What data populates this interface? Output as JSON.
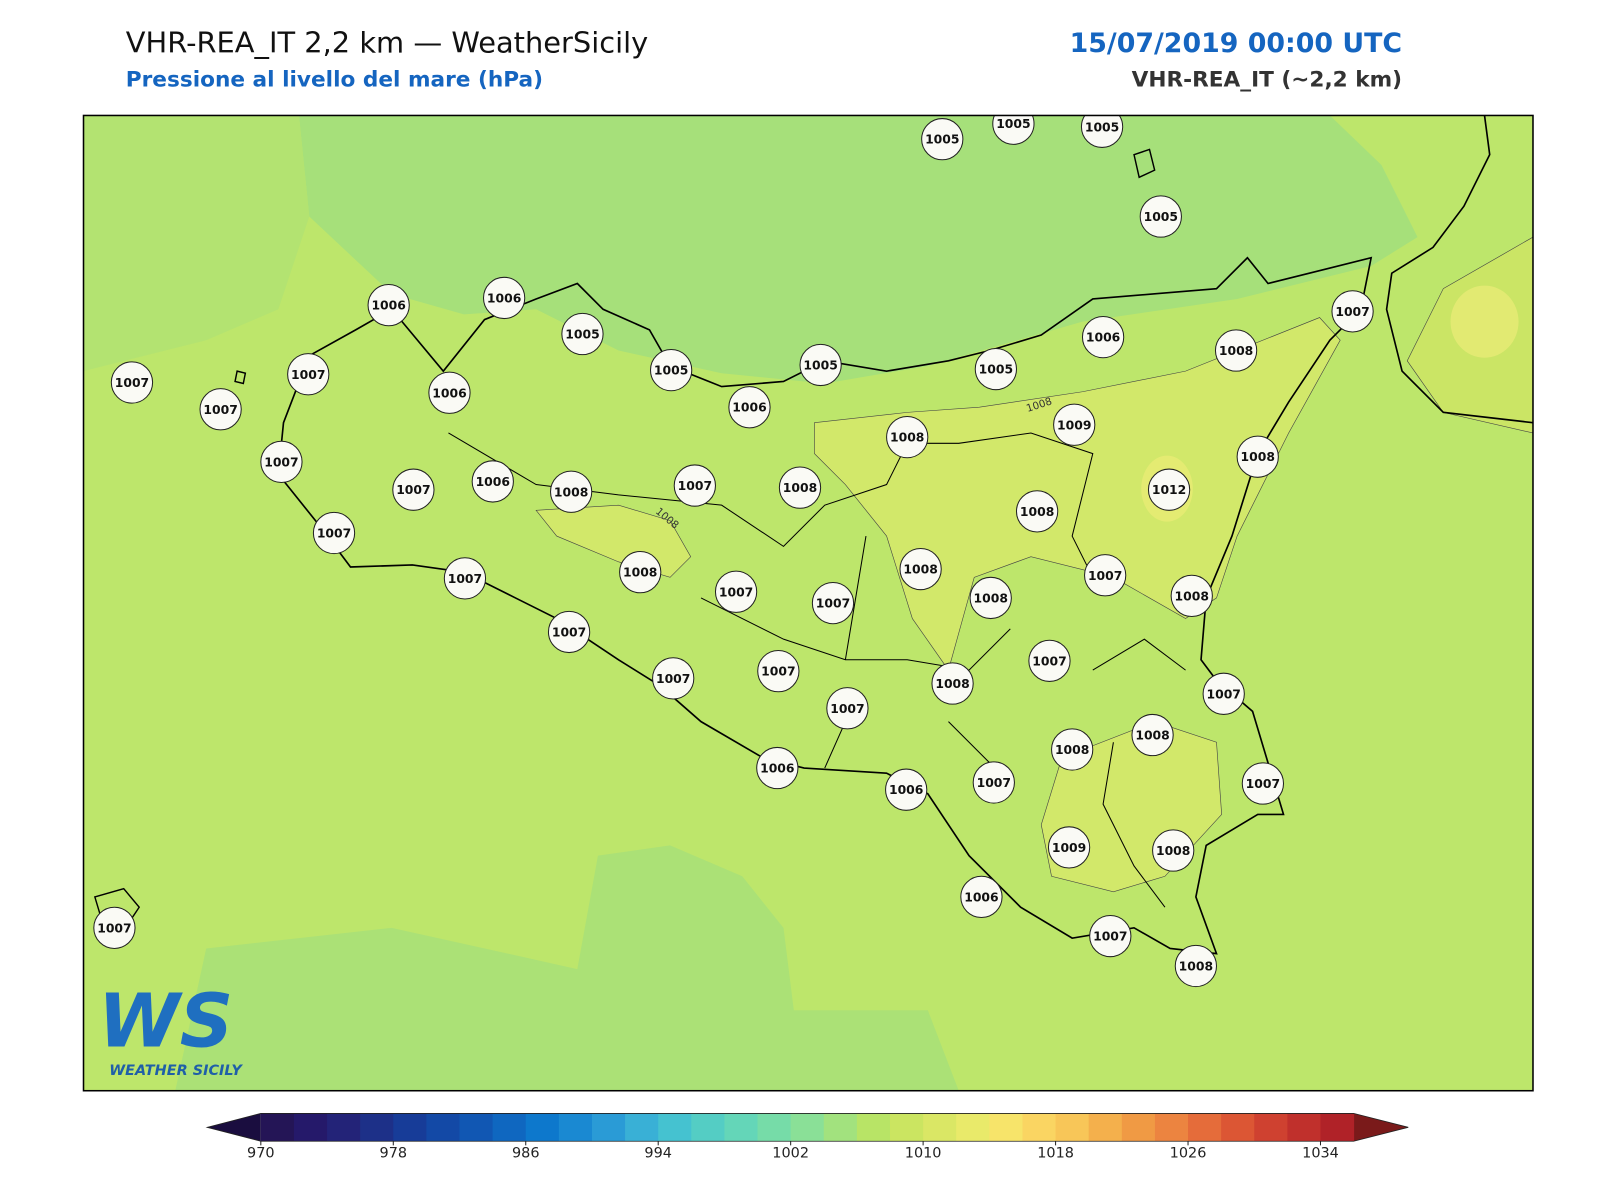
{
  "header": {
    "title": "VHR-REA_IT 2,2 km — WeatherSicily",
    "subtitle": "Pressione al livello del mare (hPa)",
    "date": "15/07/2019 00:00 UTC",
    "model": "VHR-REA_IT (~2,2 km)"
  },
  "stations": [
    1005,
    1005,
    1005,
    1005,
    1007,
    1006,
    1008,
    1006,
    1006,
    1005,
    1005,
    1005,
    1005,
    1007,
    1007,
    1007,
    1006,
    1006,
    1008,
    1009,
    1008,
    1007,
    1007,
    1006,
    1008,
    1007,
    1008,
    1012,
    1008,
    1007,
    1007,
    1008,
    1008,
    1007,
    1008,
    1008,
    1007,
    1007,
    1007,
    1007,
    1007,
    1007,
    1008,
    1007,
    1007,
    1008,
    1008,
    1006,
    1006,
    1007,
    1007,
    1009,
    1008,
    1006,
    1007,
    1008,
    1007
  ],
  "contour_labels": [
    1008,
    1008
  ],
  "colorbar": {
    "range": [
      970,
      1036
    ],
    "ticks": [
      970,
      978,
      986,
      994,
      1002,
      1010,
      1018,
      1026,
      1034
    ],
    "colors": [
      "#241556",
      "#25196a",
      "#232378",
      "#1d3088",
      "#173c98",
      "#1349a6",
      "#1157b3",
      "#0f67c0",
      "#0d78cc",
      "#1a89d2",
      "#2a9bd6",
      "#39b0d6",
      "#45c2d0",
      "#54cdc4",
      "#64d6b8",
      "#76dca8",
      "#8ae097",
      "#a2e27e",
      "#b8e466",
      "#cbe561",
      "#dae765",
      "#e9ea6a",
      "#f7e46a",
      "#fad562",
      "#f8c658",
      "#f4b04c",
      "#f09a44",
      "#ec8440",
      "#e56c3a",
      "#dc5634",
      "#cf4130",
      "#c0302c",
      "#b02228"
    ],
    "under_color": "#1a0d3f",
    "over_color": "#7a1a1a"
  },
  "logo": {
    "mark": "WS",
    "text": "WEATHER SICILY"
  }
}
